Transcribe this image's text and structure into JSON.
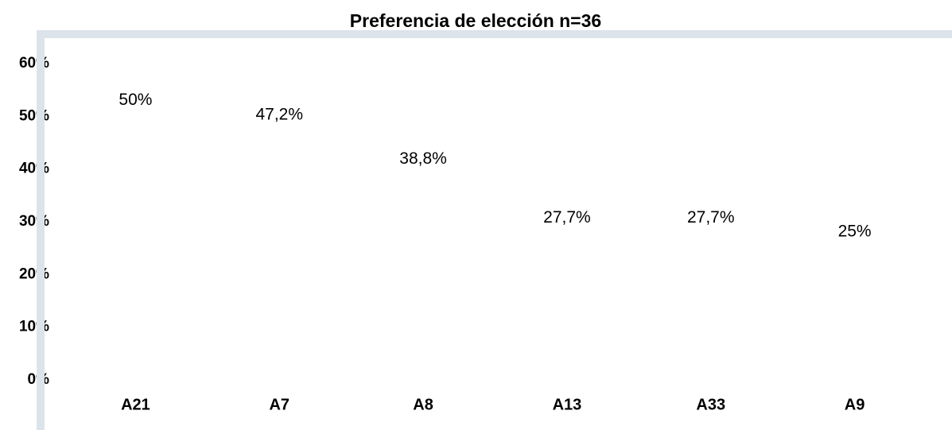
{
  "chart_data": {
    "type": "bar",
    "title": "Preferencia de elección n=36",
    "categories": [
      "A21",
      "A7",
      "A8",
      "A13",
      "A33",
      "A9"
    ],
    "values": [
      50,
      47.2,
      38.8,
      27.7,
      27.7,
      25
    ],
    "value_labels": [
      "50%",
      "47,2%",
      "38,8%",
      "27,7%",
      "27,7%",
      "25%"
    ],
    "color": "#ffffff",
    "ylim": [
      0,
      60
    ],
    "yticks": [
      {
        "value": 0,
        "label": "0%"
      },
      {
        "value": 10,
        "label": "10%"
      },
      {
        "value": 20,
        "label": "20%"
      },
      {
        "value": 30,
        "label": "30%"
      },
      {
        "value": 40,
        "label": "40%"
      },
      {
        "value": 50,
        "label": "50%"
      },
      {
        "value": 60,
        "label": "60%"
      }
    ]
  }
}
